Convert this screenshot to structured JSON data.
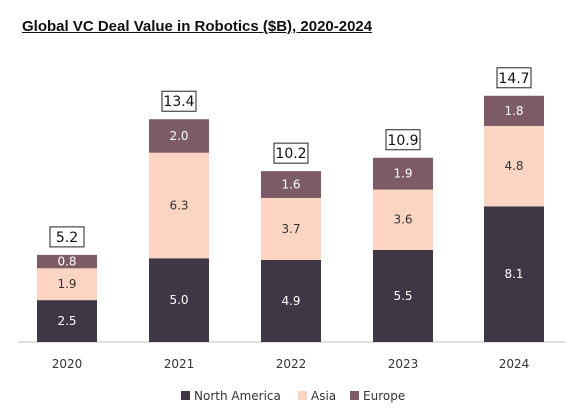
{
  "title": "Global VC Deal Value in Robotics ($B), 2020-2024",
  "colors": {
    "north_america": "#3f3646",
    "asia": "#fbd5c2",
    "europe": "#7d5b66",
    "axis": "#bfbfbf"
  },
  "chart_data": {
    "type": "bar",
    "stacked": true,
    "title": "Global VC Deal Value in Robotics ($B), 2020-2024",
    "categories": [
      "2020",
      "2021",
      "2022",
      "2023",
      "2024"
    ],
    "series": [
      {
        "name": "North America",
        "values": [
          2.5,
          5.0,
          4.9,
          5.5,
          8.1
        ],
        "value_labels": [
          "2.5",
          "5.0",
          "4.9",
          "5.5",
          "8.1"
        ]
      },
      {
        "name": "Asia",
        "values": [
          1.9,
          6.3,
          3.7,
          3.6,
          4.8
        ],
        "value_labels": [
          "1.9",
          "6.3",
          "3.7",
          "3.6",
          "4.8"
        ]
      },
      {
        "name": "Europe",
        "values": [
          0.8,
          2.0,
          1.6,
          1.9,
          1.8
        ],
        "value_labels": [
          "0.8",
          "2.0",
          "1.6",
          "1.9",
          "1.8"
        ]
      }
    ],
    "totals": [
      "5.2",
      "13.4",
      "10.2",
      "10.9",
      "14.7"
    ],
    "ylim": [
      0,
      15
    ],
    "grid": false,
    "legend_position": "bottom"
  }
}
